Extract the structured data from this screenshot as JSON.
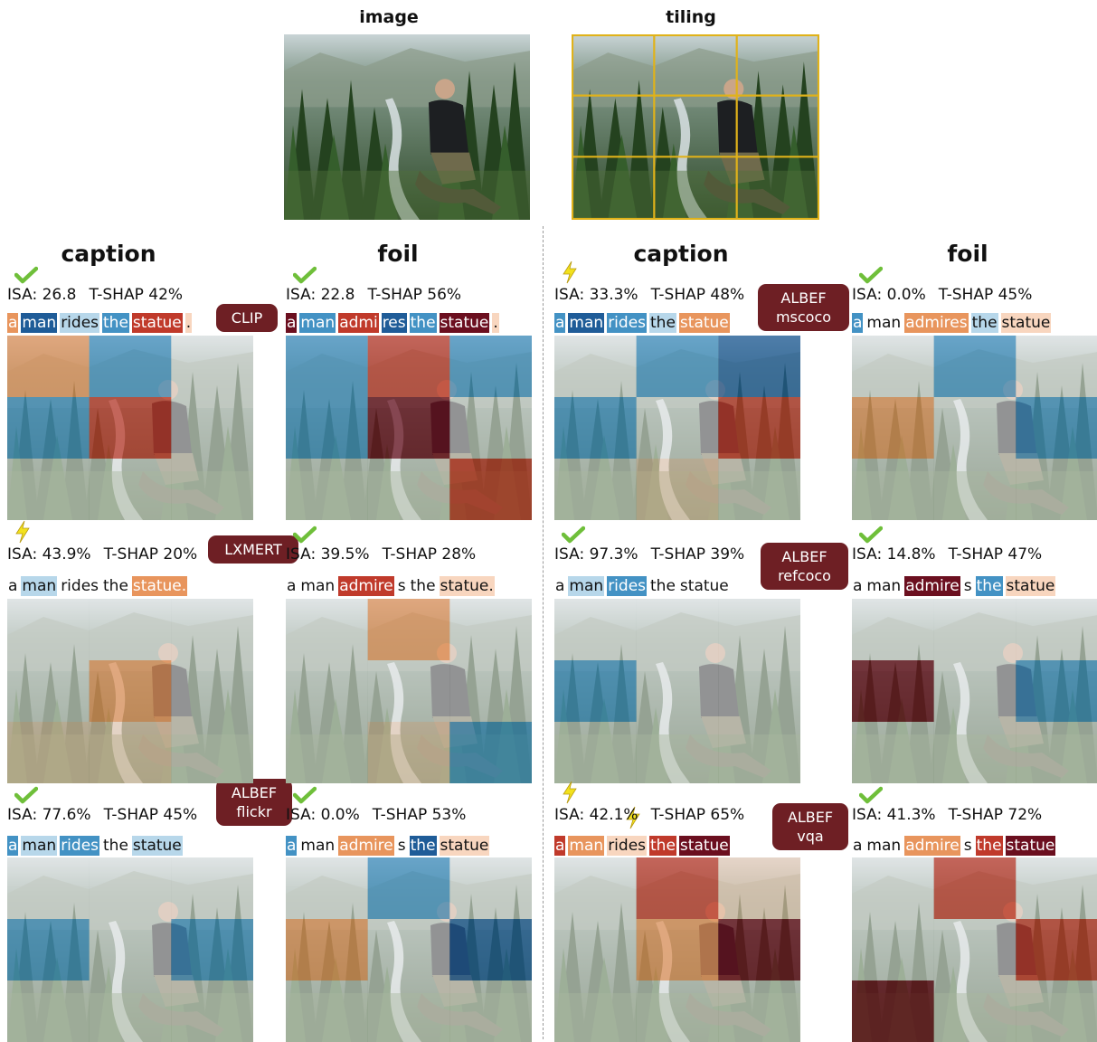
{
  "header": {
    "image_label": "image",
    "tiling_label": "tiling"
  },
  "columns": {
    "caption": "caption",
    "foil": "foil"
  },
  "colors": {
    "tile_grid": "#e0b21a",
    "badge": "#6e1f24",
    "check": "#6fbf3a",
    "bolt": "#f2e11d",
    "dark_red": "#6b0f1f",
    "red": "#c03a2b",
    "orange": "#e8955d",
    "light_orange": "#f8d6bf",
    "light_blue": "#b7d7ea",
    "blue": "#4392c4",
    "dark_blue": "#1f5c98",
    "neutral": "#f0f0f0"
  },
  "legend_note": "token and tile colors encode SHAP contribution (red/orange vs blue)",
  "panels": [
    {
      "id": "clip-caption",
      "isa": "ISA: 26.8",
      "tshap": "T-SHAP 42%",
      "marks": [
        "check"
      ],
      "tokens": [
        {
          "t": "a",
          "c": "orange"
        },
        {
          "t": "man",
          "c": "dark_blue"
        },
        {
          "t": "rides",
          "c": "light_blue"
        },
        {
          "t": "the",
          "c": "blue"
        },
        {
          "t": "statue",
          "c": "red"
        },
        {
          "t": ".",
          "c": "light_orange"
        }
      ],
      "heat": [
        "orange",
        "blue",
        "neutral",
        "blue",
        "red",
        "neutral",
        "neutral",
        "neutral",
        "neutral"
      ]
    },
    {
      "id": "clip-foil",
      "isa": "ISA: 22.8",
      "tshap": "T-SHAP 56%",
      "marks": [
        "check"
      ],
      "tokens": [
        {
          "t": "a",
          "c": "dark_red"
        },
        {
          "t": "man",
          "c": "blue"
        },
        {
          "t": "admi",
          "c": "red"
        },
        {
          "t": "res",
          "c": "dark_blue"
        },
        {
          "t": "the",
          "c": "blue"
        },
        {
          "t": "statue",
          "c": "dark_red"
        },
        {
          "t": ".",
          "c": "light_orange"
        }
      ],
      "heat": [
        "blue",
        "red",
        "blue",
        "blue",
        "dark_red",
        "neutral",
        "neutral",
        "neutral",
        "red"
      ]
    },
    {
      "id": "albef-mscoco-caption",
      "isa": "ISA: 33.3%",
      "tshap": "T-SHAP 48%",
      "marks": [
        "bolt"
      ],
      "tokens": [
        {
          "t": "a",
          "c": "blue"
        },
        {
          "t": "man",
          "c": "dark_blue"
        },
        {
          "t": "rides",
          "c": "blue"
        },
        {
          "t": "the",
          "c": "light_blue"
        },
        {
          "t": "statue",
          "c": "orange"
        }
      ],
      "heat": [
        "neutral",
        "blue",
        "dark_blue",
        "blue",
        "neutral",
        "red",
        "neutral",
        "light_orange",
        "neutral"
      ]
    },
    {
      "id": "albef-mscoco-foil",
      "isa": "ISA: 0.0%",
      "tshap": "T-SHAP 45%",
      "marks": [
        "check"
      ],
      "tokens": [
        {
          "t": "a",
          "c": "blue"
        },
        {
          "t": "man",
          "c": "neutral"
        },
        {
          "t": "admires",
          "c": "orange"
        },
        {
          "t": "the",
          "c": "light_blue"
        },
        {
          "t": "statue",
          "c": "light_orange"
        }
      ],
      "heat": [
        "neutral",
        "blue",
        "neutral",
        "orange",
        "neutral",
        "blue",
        "neutral",
        "neutral",
        "neutral"
      ]
    },
    {
      "id": "lxmert-caption",
      "isa": "ISA: 43.9%",
      "tshap": "T-SHAP 20%",
      "marks": [
        "bolt"
      ],
      "tokens": [
        {
          "t": "a",
          "c": "neutral"
        },
        {
          "t": "man",
          "c": "light_blue"
        },
        {
          "t": "rides",
          "c": "neutral"
        },
        {
          "t": "the",
          "c": "neutral"
        },
        {
          "t": "statue.",
          "c": "orange"
        }
      ],
      "heat": [
        "neutral",
        "neutral",
        "neutral",
        "neutral",
        "orange",
        "neutral",
        "light_orange",
        "light_orange",
        "neutral"
      ]
    },
    {
      "id": "lxmert-foil",
      "isa": "ISA: 39.5%",
      "tshap": "T-SHAP 28%",
      "marks": [
        "check"
      ],
      "tokens": [
        {
          "t": "a",
          "c": "neutral"
        },
        {
          "t": "man",
          "c": "neutral"
        },
        {
          "t": "admire",
          "c": "red"
        },
        {
          "t": "s",
          "c": "neutral"
        },
        {
          "t": "the",
          "c": "neutral"
        },
        {
          "t": "statue.",
          "c": "light_orange"
        }
      ],
      "heat": [
        "neutral",
        "orange",
        "neutral",
        "neutral",
        "neutral",
        "neutral",
        "neutral",
        "light_orange",
        "blue"
      ]
    },
    {
      "id": "albef-refcoco-caption",
      "isa": "ISA: 97.3%",
      "tshap": "T-SHAP 39%",
      "marks": [
        "check"
      ],
      "tokens": [
        {
          "t": "a",
          "c": "neutral"
        },
        {
          "t": "man",
          "c": "light_blue"
        },
        {
          "t": "rides",
          "c": "blue"
        },
        {
          "t": "the",
          "c": "neutral"
        },
        {
          "t": "statue",
          "c": "neutral"
        }
      ],
      "heat": [
        "neutral",
        "neutral",
        "neutral",
        "blue",
        "neutral",
        "neutral",
        "neutral",
        "neutral",
        "neutral"
      ]
    },
    {
      "id": "albef-refcoco-foil",
      "isa": "ISA: 14.8%",
      "tshap": "T-SHAP 47%",
      "marks": [
        "check"
      ],
      "tokens": [
        {
          "t": "a",
          "c": "neutral"
        },
        {
          "t": "man",
          "c": "neutral"
        },
        {
          "t": "admire",
          "c": "dark_red"
        },
        {
          "t": "s",
          "c": "neutral"
        },
        {
          "t": "the",
          "c": "blue"
        },
        {
          "t": "statue",
          "c": "light_orange"
        }
      ],
      "heat": [
        "neutral",
        "neutral",
        "neutral",
        "dark_red",
        "neutral",
        "blue",
        "neutral",
        "neutral",
        "neutral"
      ]
    },
    {
      "id": "albef-flickr-caption",
      "isa": "ISA: 77.6%",
      "tshap": "T-SHAP 45%",
      "marks": [
        "check"
      ],
      "tokens": [
        {
          "t": "a",
          "c": "blue"
        },
        {
          "t": "man",
          "c": "light_blue"
        },
        {
          "t": "rides",
          "c": "blue"
        },
        {
          "t": "the",
          "c": "neutral"
        },
        {
          "t": "statue",
          "c": "light_blue"
        }
      ],
      "heat": [
        "neutral",
        "neutral",
        "neutral",
        "blue",
        "neutral",
        "blue",
        "neutral",
        "neutral",
        "neutral"
      ]
    },
    {
      "id": "albef-flickr-foil",
      "isa": "ISA: 0.0%",
      "tshap": "T-SHAP 53%",
      "marks": [
        "check"
      ],
      "tokens": [
        {
          "t": "a",
          "c": "blue"
        },
        {
          "t": "man",
          "c": "neutral"
        },
        {
          "t": "admire",
          "c": "orange"
        },
        {
          "t": "s",
          "c": "neutral"
        },
        {
          "t": "the",
          "c": "dark_blue"
        },
        {
          "t": "statue",
          "c": "light_orange"
        }
      ],
      "heat": [
        "neutral",
        "blue",
        "neutral",
        "orange",
        "neutral",
        "dark_blue",
        "neutral",
        "neutral",
        "neutral"
      ]
    },
    {
      "id": "albef-vqa-caption",
      "isa": "ISA: 42.1%",
      "tshap": "T-SHAP 65%",
      "marks": [
        "bolt",
        "bolt"
      ],
      "tokens": [
        {
          "t": "a",
          "c": "red"
        },
        {
          "t": "man",
          "c": "orange"
        },
        {
          "t": "rides",
          "c": "light_orange"
        },
        {
          "t": "the",
          "c": "red"
        },
        {
          "t": "statue",
          "c": "dark_red"
        }
      ],
      "heat": [
        "neutral",
        "red",
        "light_orange",
        "neutral",
        "orange",
        "dark_red",
        "neutral",
        "neutral",
        "neutral"
      ]
    },
    {
      "id": "albef-vqa-foil",
      "isa": "ISA: 41.3%",
      "tshap": "T-SHAP 72%",
      "marks": [
        "check"
      ],
      "tokens": [
        {
          "t": "a",
          "c": "neutral"
        },
        {
          "t": "man",
          "c": "neutral"
        },
        {
          "t": "admire",
          "c": "orange"
        },
        {
          "t": "s",
          "c": "neutral"
        },
        {
          "t": "the",
          "c": "red"
        },
        {
          "t": "statue",
          "c": "dark_red"
        }
      ],
      "heat": [
        "neutral",
        "red",
        "neutral",
        "neutral",
        "neutral",
        "red",
        "dark_red",
        "neutral",
        "neutral"
      ]
    }
  ],
  "badges": {
    "clip": "CLIP",
    "lxmert": "LXMERT",
    "albef_mscoco": [
      "ALBEF",
      "mscoco"
    ],
    "albef_refcoco": [
      "ALBEF",
      "refcoco"
    ],
    "albef_flickr": [
      "ALBEF",
      "flickr"
    ],
    "albef_vqa": [
      "ALBEF",
      "vqa"
    ]
  }
}
